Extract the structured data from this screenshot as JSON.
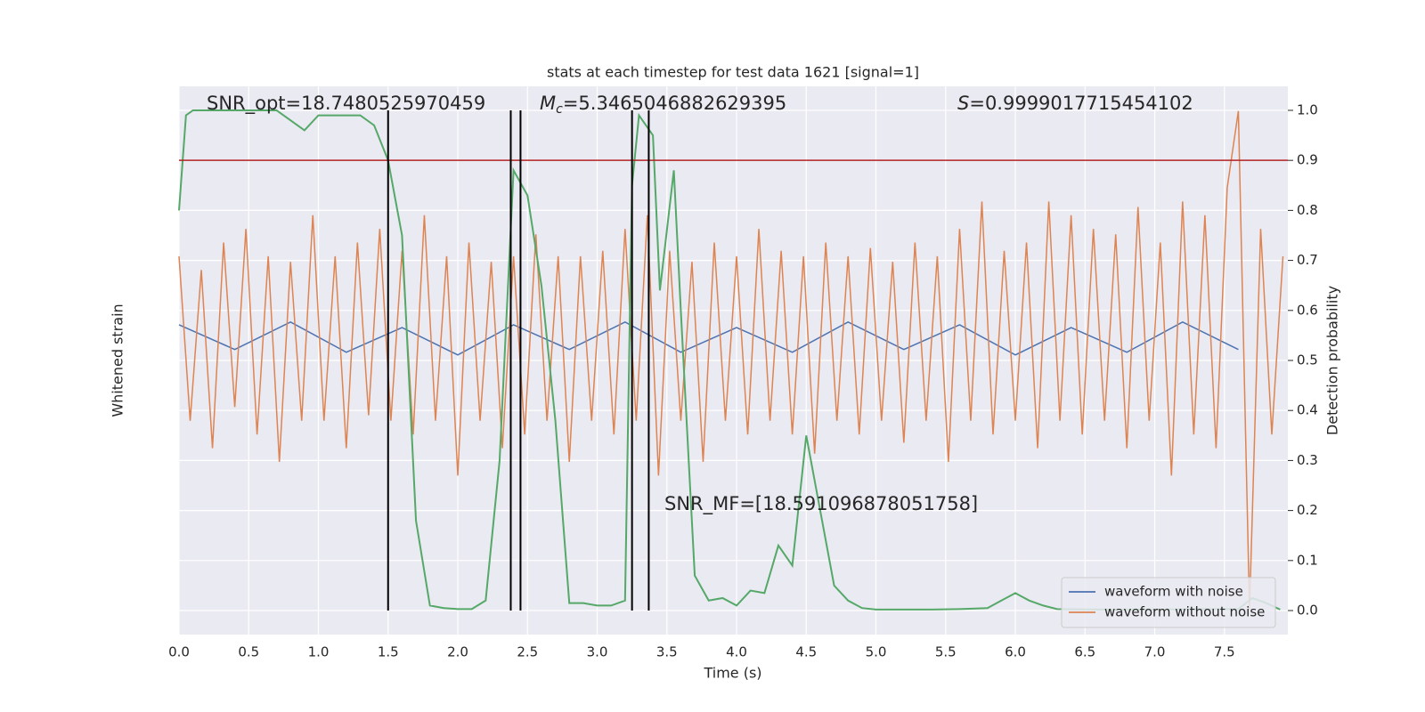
{
  "chart_data": {
    "type": "line",
    "title": "stats at each timestep for test data 1621 [signal=1]",
    "xlabel": "Time (s)",
    "ylabel": "Whitened strain",
    "y2label": "Detection probability",
    "xlim": [
      0,
      7.955
    ],
    "xticks": [
      {
        "value": 0,
        "label": "0.0"
      },
      0.5,
      {
        "value": 1,
        "label": "1.0"
      },
      1.5,
      {
        "value": 2,
        "label": "2.0"
      },
      2.5,
      {
        "value": 3,
        "label": "3.0"
      },
      3.5,
      {
        "value": 4,
        "label": "4.0"
      },
      4.5,
      {
        "value": 5,
        "label": "5.0"
      },
      5.5,
      {
        "value": 6,
        "label": "6.0"
      },
      6.5,
      {
        "value": 7,
        "label": "7.0"
      },
      7.5
    ],
    "ylim": [
      -1.08,
      0.92
    ],
    "y2lim": [
      -0.048,
      1.048
    ],
    "y2ticks": [
      {
        "value": 0,
        "label": "0.0"
      },
      0.1,
      0.2,
      0.3,
      0.4,
      0.5,
      0.6,
      0.7,
      0.8,
      0.9,
      {
        "value": 1,
        "label": "1.0"
      }
    ],
    "grid": true,
    "legend": "lower right",
    "series": [
      {
        "name": "waveform with noise",
        "color": "#4c72b0",
        "axis": "y",
        "x": [
          0,
          0.4,
          0.8,
          1.2,
          1.6,
          2.0,
          2.4,
          2.8,
          3.2,
          3.6,
          4.0,
          4.4,
          4.8,
          5.2,
          5.6,
          6.0,
          6.4,
          6.8,
          7.2,
          7.6
        ],
        "values": [
          0.05,
          -0.04,
          0.06,
          -0.05,
          0.04,
          -0.06,
          0.05,
          -0.04,
          0.06,
          -0.05,
          0.04,
          -0.05,
          0.06,
          -0.04,
          0.05,
          -0.06,
          0.04,
          -0.05,
          0.06,
          -0.04
        ]
      },
      {
        "name": "waveform without noise",
        "color": "#dd8452",
        "axis": "y",
        "x": [
          0,
          0.08,
          0.16,
          0.24,
          0.32,
          0.4,
          0.48,
          0.56,
          0.64,
          0.72,
          0.8,
          0.88,
          0.96,
          1.04,
          1.12,
          1.2,
          1.28,
          1.36,
          1.44,
          1.52,
          1.6,
          1.68,
          1.76,
          1.84,
          1.92,
          2.0,
          2.08,
          2.16,
          2.24,
          2.32,
          2.4,
          2.48,
          2.56,
          2.64,
          2.72,
          2.8,
          2.88,
          2.96,
          3.04,
          3.12,
          3.2,
          3.28,
          3.36,
          3.44,
          3.52,
          3.6,
          3.68,
          3.76,
          3.84,
          3.92,
          4.0,
          4.08,
          4.16,
          4.24,
          4.32,
          4.4,
          4.48,
          4.56,
          4.64,
          4.72,
          4.8,
          4.88,
          4.96,
          5.04,
          5.12,
          5.2,
          5.28,
          5.36,
          5.44,
          5.52,
          5.6,
          5.68,
          5.76,
          5.84,
          5.92,
          6.0,
          6.08,
          6.16,
          6.24,
          6.32,
          6.4,
          6.48,
          6.56,
          6.64,
          6.72,
          6.8,
          6.88,
          6.96,
          7.04,
          7.12,
          7.2,
          7.28,
          7.36,
          7.44,
          7.52,
          7.6,
          7.68,
          7.76,
          7.84,
          7.92
        ],
        "values": [
          0.3,
          -0.3,
          0.25,
          -0.4,
          0.35,
          -0.25,
          0.4,
          -0.35,
          0.3,
          -0.45,
          0.28,
          -0.3,
          0.45,
          -0.3,
          0.3,
          -0.4,
          0.35,
          -0.28,
          0.4,
          -0.3,
          0.32,
          -0.35,
          0.45,
          -0.3,
          0.3,
          -0.5,
          0.35,
          -0.3,
          0.28,
          -0.4,
          0.3,
          -0.35,
          0.38,
          -0.3,
          0.3,
          -0.45,
          0.3,
          -0.3,
          0.32,
          -0.35,
          0.4,
          -0.3,
          0.45,
          -0.5,
          0.32,
          -0.3,
          0.28,
          -0.45,
          0.35,
          -0.3,
          0.3,
          -0.35,
          0.4,
          -0.3,
          0.32,
          -0.35,
          0.3,
          -0.42,
          0.35,
          -0.3,
          0.3,
          -0.35,
          0.33,
          -0.3,
          0.28,
          -0.38,
          0.35,
          -0.3,
          0.3,
          -0.45,
          0.4,
          -0.3,
          0.5,
          -0.35,
          0.32,
          -0.3,
          0.35,
          -0.4,
          0.5,
          -0.3,
          0.45,
          -0.35,
          0.4,
          -0.3,
          0.38,
          -0.4,
          0.48,
          -0.3,
          0.35,
          -0.5,
          0.5,
          -0.35,
          0.45,
          -0.4,
          0.55,
          0.83,
          -0.99,
          0.4,
          -0.35,
          0.3
        ]
      },
      {
        "color": "#55a868",
        "axis": "y2",
        "x": [
          0,
          0.05,
          0.1,
          0.2,
          0.3,
          0.4,
          0.5,
          0.6,
          0.7,
          0.8,
          0.9,
          1.0,
          1.1,
          1.2,
          1.3,
          1.4,
          1.5,
          1.6,
          1.7,
          1.8,
          1.9,
          2.0,
          2.1,
          2.2,
          2.3,
          2.4,
          2.5,
          2.6,
          2.7,
          2.8,
          2.9,
          3.0,
          3.1,
          3.2,
          3.25,
          3.3,
          3.4,
          3.45,
          3.55,
          3.6,
          3.7,
          3.8,
          3.9,
          4.0,
          4.1,
          4.2,
          4.3,
          4.4,
          4.5,
          4.6,
          4.7,
          4.8,
          4.9,
          5.0,
          5.2,
          5.4,
          5.6,
          5.8,
          5.9,
          6.0,
          6.1,
          6.2,
          6.3,
          6.6,
          7.0,
          7.4,
          7.6,
          7.7,
          7.8,
          7.9
        ],
        "values": [
          0.8,
          0.99,
          1.0,
          1.0,
          1.0,
          1.0,
          1.0,
          1.0,
          1.0,
          0.98,
          0.96,
          0.99,
          0.99,
          0.99,
          0.99,
          0.97,
          0.9,
          0.75,
          0.18,
          0.01,
          0.005,
          0.003,
          0.003,
          0.02,
          0.3,
          0.88,
          0.83,
          0.65,
          0.38,
          0.015,
          0.015,
          0.01,
          0.01,
          0.02,
          0.85,
          0.99,
          0.95,
          0.64,
          0.88,
          0.6,
          0.07,
          0.02,
          0.025,
          0.01,
          0.04,
          0.035,
          0.13,
          0.09,
          0.35,
          0.2,
          0.05,
          0.02,
          0.005,
          0.002,
          0.002,
          0.002,
          0.003,
          0.005,
          0.02,
          0.035,
          0.02,
          0.01,
          0.003,
          0.002,
          0.002,
          0.003,
          0.003,
          0.025,
          0.015,
          0.002
        ]
      }
    ],
    "hline": {
      "y": 0.9,
      "color": "#b22222"
    },
    "vlines": {
      "x": [
        1.5,
        2.38,
        2.45,
        3.25,
        3.37
      ],
      "ymin": 0,
      "ymax": 1,
      "color": "#000000"
    },
    "annotations": [
      {
        "text": "SNR_opt=18.7480525970459"
      },
      {
        "symbol": "M",
        "subscript": "c",
        "text": "=5.3465046882629395"
      },
      {
        "symbol": "S",
        "text": "=0.9999017715454102"
      },
      {
        "text": "SNR_MF=[18.591096878051758]"
      }
    ]
  }
}
